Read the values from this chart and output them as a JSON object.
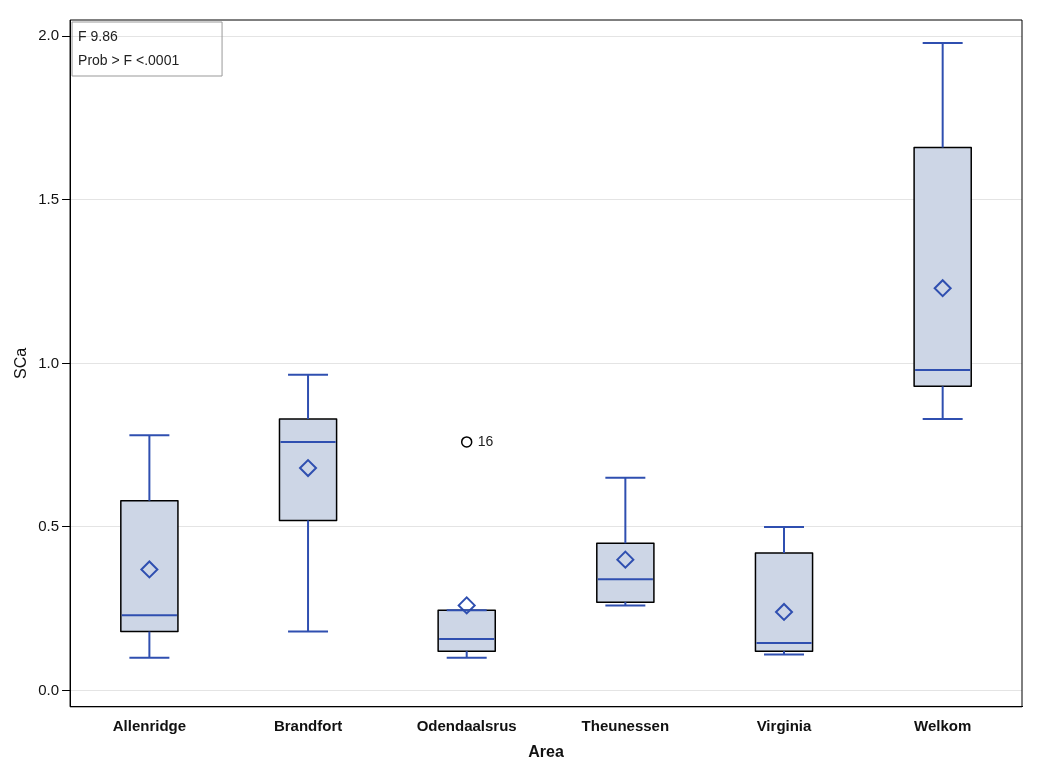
{
  "chart_data": {
    "type": "box",
    "xlabel": "Area",
    "ylabel": "SCa",
    "categories": [
      "Allenridge",
      "Brandfort",
      "Odendaalsrus",
      "Theunessen",
      "Virginia",
      "Welkom"
    ],
    "color": "#cdd6e6",
    "marker": "diamond",
    "grid": "y",
    "ylim": [
      -0.05,
      2.05
    ],
    "yticks": [
      {
        "value": 0,
        "label": "0.0"
      },
      {
        "value": 0.5,
        "label": "0.5"
      },
      {
        "value": 1,
        "label": "1.0"
      },
      {
        "value": 1.5,
        "label": "1.5"
      },
      {
        "value": 2,
        "label": "2.0"
      }
    ],
    "boxes": [
      {
        "low": 0.1,
        "q1": 0.18,
        "median": 0.23,
        "q3": 0.58,
        "high": 0.78,
        "mean": 0.37
      },
      {
        "low": 0.18,
        "q1": 0.52,
        "median": 0.76,
        "q3": 0.83,
        "high": 0.965,
        "mean": 0.68
      },
      {
        "low": 0.1,
        "q1": 0.12,
        "median": 0.157,
        "q3": 0.245,
        "high": 0.245,
        "mean": 0.26,
        "outliers": [
          0.76
        ]
      },
      {
        "low": 0.26,
        "q1": 0.27,
        "median": 0.34,
        "q3": 0.45,
        "high": 0.65,
        "mean": 0.4
      },
      {
        "low": 0.11,
        "q1": 0.12,
        "median": 0.145,
        "q3": 0.42,
        "high": 0.5,
        "mean": 0.24
      },
      {
        "low": 0.83,
        "q1": 0.93,
        "median": 0.98,
        "q3": 1.66,
        "high": 1.98,
        "mean": 1.23
      }
    ],
    "annotations": [
      "F 9.86",
      "Prob > F <.0001",
      "16"
    ]
  }
}
